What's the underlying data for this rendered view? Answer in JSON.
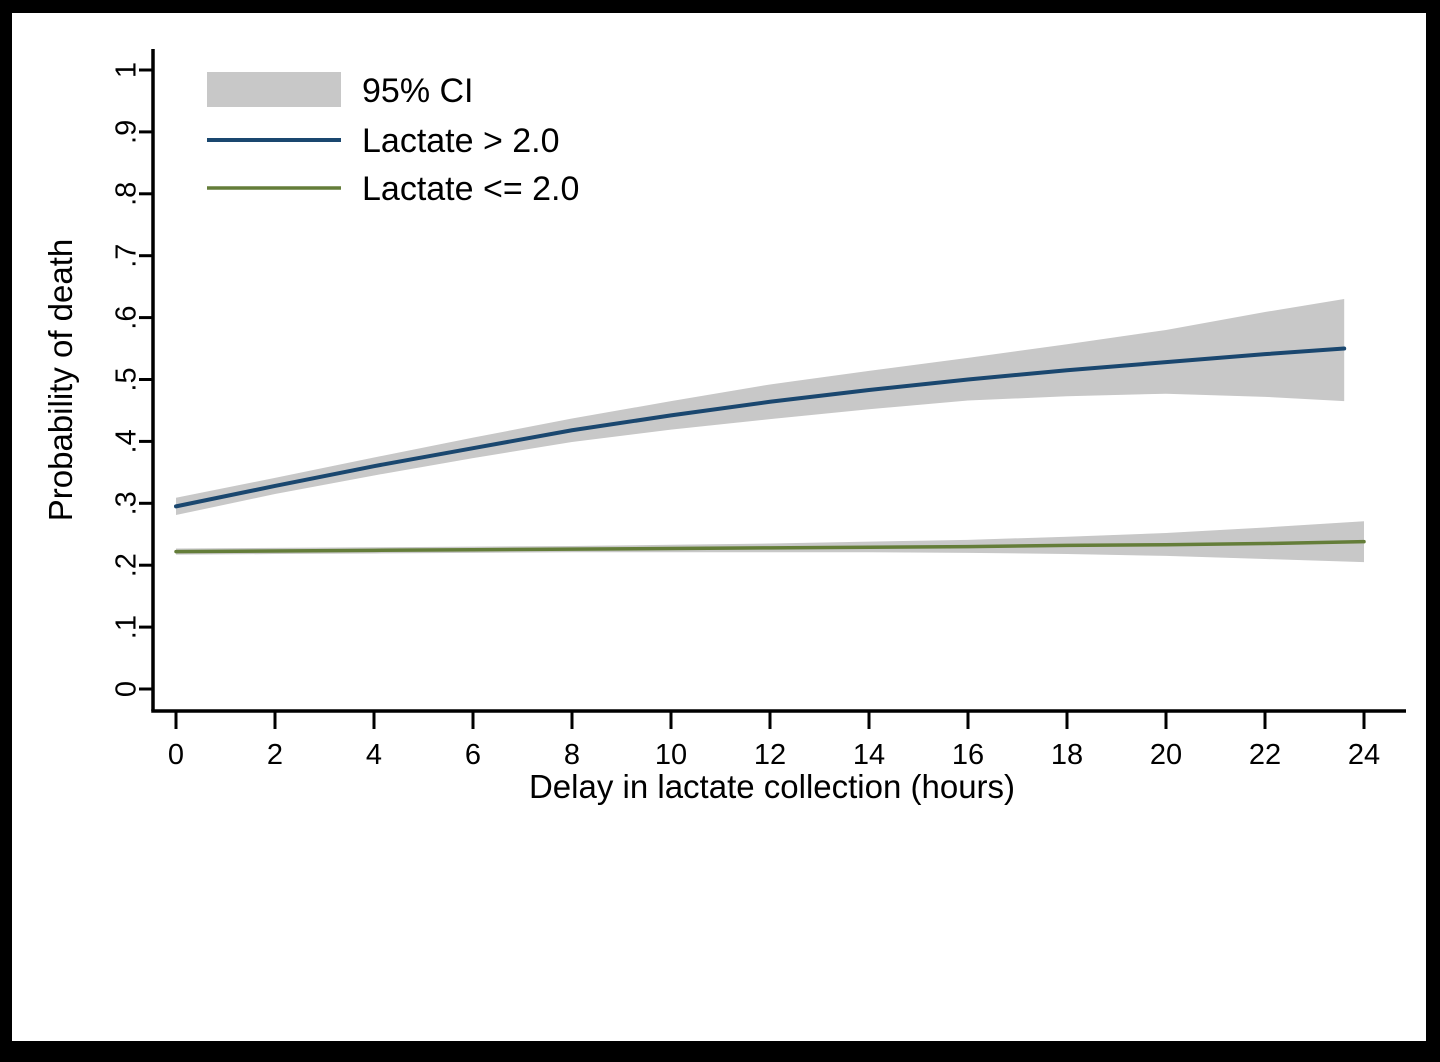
{
  "figure": {
    "background_color": "#ffffff",
    "frame_color": "#000000",
    "axis_color": "#000000",
    "ci_band_color": "#c8c8c8"
  },
  "chart_data": {
    "type": "line",
    "title": "",
    "xlabel": "Delay in lactate collection (hours)",
    "ylabel": "Probability of death",
    "xlim": [
      0,
      24
    ],
    "ylim": [
      0,
      1
    ],
    "grid": false,
    "x_ticks": [
      0,
      2,
      4,
      6,
      8,
      10,
      12,
      14,
      16,
      18,
      20,
      22,
      24
    ],
    "y_tick_values": [
      0,
      0.1,
      0.2,
      0.3,
      0.4,
      0.5,
      0.6,
      0.7,
      0.8,
      0.9,
      1
    ],
    "y_tick_labels": [
      "0",
      ".1",
      ".2",
      ".3",
      ".4",
      ".5",
      ".6",
      ".7",
      ".8",
      ".9",
      "1"
    ],
    "legend": {
      "position": "top-left",
      "entries": [
        {
          "label": "95% CI",
          "type": "band",
          "color": "#c8c8c8"
        },
        {
          "label": "Lactate > 2.0",
          "type": "line",
          "color": "#1a476f"
        },
        {
          "label": "Lactate <= 2.0",
          "type": "line",
          "color": "#647d39"
        }
      ]
    },
    "series": [
      {
        "name": "Lactate > 2.0",
        "slug": "lactate-gt-2",
        "color": "#1a476f",
        "line_width": 4,
        "x": [
          0,
          2,
          4,
          6,
          8,
          10,
          12,
          14,
          16,
          18,
          20,
          22,
          23.6
        ],
        "y": [
          0.295,
          0.328,
          0.36,
          0.389,
          0.418,
          0.442,
          0.464,
          0.483,
          0.5,
          0.515,
          0.528,
          0.541,
          0.55
        ],
        "ci_low": [
          0.281,
          0.315,
          0.345,
          0.373,
          0.399,
          0.419,
          0.436,
          0.452,
          0.466,
          0.473,
          0.477,
          0.472,
          0.465
        ],
        "ci_high": [
          0.309,
          0.341,
          0.374,
          0.406,
          0.437,
          0.465,
          0.492,
          0.514,
          0.535,
          0.557,
          0.58,
          0.609,
          0.63
        ]
      },
      {
        "name": "Lactate <= 2.0",
        "slug": "lactate-le-2",
        "color": "#647d39",
        "line_width": 3.5,
        "x": [
          0,
          2,
          4,
          6,
          8,
          10,
          12,
          14,
          16,
          18,
          20,
          22,
          24
        ],
        "y": [
          0.222,
          0.223,
          0.224,
          0.225,
          0.226,
          0.227,
          0.228,
          0.229,
          0.23,
          0.232,
          0.233,
          0.235,
          0.238
        ],
        "ci_low": [
          0.217,
          0.218,
          0.219,
          0.22,
          0.221,
          0.221,
          0.221,
          0.221,
          0.22,
          0.218,
          0.215,
          0.21,
          0.205
        ],
        "ci_high": [
          0.227,
          0.228,
          0.229,
          0.23,
          0.231,
          0.233,
          0.235,
          0.238,
          0.241,
          0.246,
          0.252,
          0.261,
          0.271
        ]
      }
    ]
  }
}
